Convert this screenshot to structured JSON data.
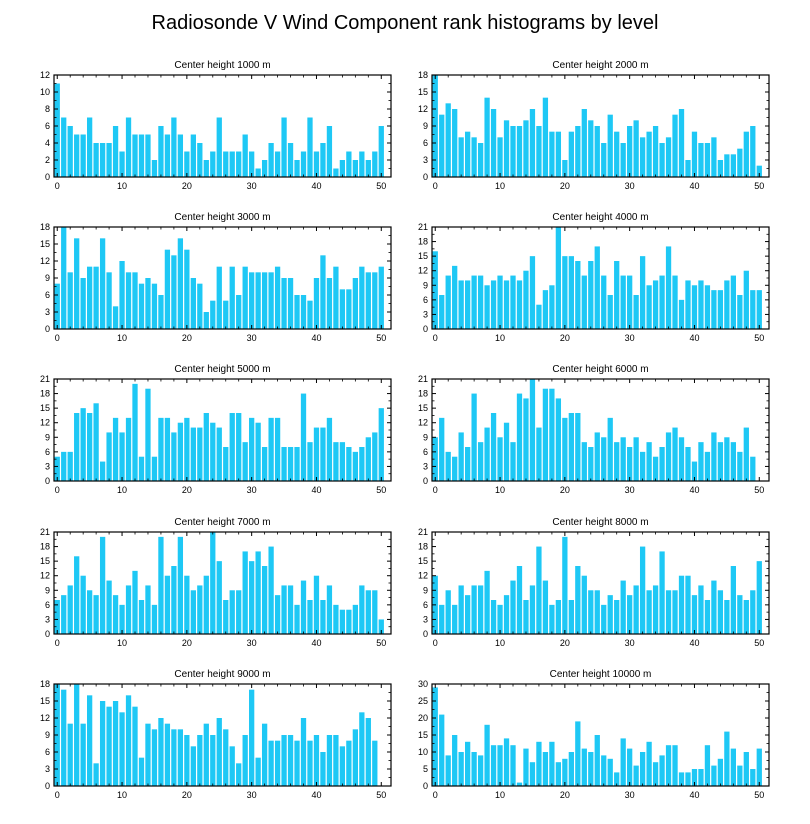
{
  "title": "Radiosonde V Wind Component rank histograms by level",
  "colors": {
    "bar": "#1ec8f5",
    "bar_edge": "#ffffff",
    "axis": "#000000"
  },
  "chart_data": [
    {
      "type": "bar",
      "title": "Center height 1000 m",
      "ylim": [
        0,
        12
      ],
      "yticks": [
        0,
        2,
        4,
        6,
        8,
        10,
        12
      ],
      "xlim": [
        -0.5,
        51.5
      ],
      "xticks": [
        0,
        10,
        20,
        30,
        40,
        50
      ],
      "values": [
        11,
        7,
        6,
        5,
        5,
        7,
        4,
        4,
        4,
        6,
        3,
        7,
        5,
        5,
        5,
        2,
        6,
        5,
        7,
        5,
        3,
        5,
        4,
        2,
        3,
        7,
        3,
        3,
        3,
        5,
        3,
        1,
        2,
        4,
        3,
        7,
        4,
        2,
        3,
        7,
        3,
        4,
        6,
        1,
        2,
        3,
        2,
        3,
        2,
        3,
        6
      ]
    },
    {
      "type": "bar",
      "title": "Center height 2000 m",
      "ylim": [
        0,
        18
      ],
      "yticks": [
        0,
        3,
        6,
        9,
        12,
        15,
        18
      ],
      "xlim": [
        -0.5,
        51.5
      ],
      "xticks": [
        0,
        10,
        20,
        30,
        40,
        50
      ],
      "values": [
        18,
        11,
        13,
        12,
        7,
        8,
        7,
        6,
        14,
        12,
        7,
        10,
        9,
        9,
        10,
        12,
        9,
        14,
        8,
        8,
        3,
        8,
        9,
        12,
        10,
        9,
        6,
        11,
        8,
        6,
        9,
        10,
        7,
        8,
        9,
        6,
        7,
        11,
        12,
        3,
        8,
        6,
        6,
        7,
        3,
        4,
        4,
        5,
        8,
        9,
        2
      ]
    },
    {
      "type": "bar",
      "title": "Center height 3000 m",
      "ylim": [
        0,
        18
      ],
      "yticks": [
        0,
        3,
        6,
        9,
        12,
        15,
        18
      ],
      "xlim": [
        -0.5,
        51.5
      ],
      "xticks": [
        0,
        10,
        20,
        30,
        40,
        50
      ],
      "values": [
        8,
        18,
        10,
        16,
        9,
        11,
        11,
        16,
        10,
        4,
        12,
        10,
        10,
        8,
        9,
        8,
        6,
        14,
        13,
        16,
        14,
        9,
        8,
        3,
        5,
        11,
        5,
        11,
        6,
        11,
        10,
        10,
        10,
        10,
        11,
        9,
        9,
        6,
        6,
        5,
        9,
        13,
        9,
        11,
        7,
        7,
        9,
        11,
        10,
        10,
        11
      ]
    },
    {
      "type": "bar",
      "title": "Center height 4000 m",
      "ylim": [
        0,
        21
      ],
      "yticks": [
        0,
        3,
        6,
        9,
        12,
        15,
        18,
        21
      ],
      "xlim": [
        -0.5,
        51.5
      ],
      "xticks": [
        0,
        10,
        20,
        30,
        40,
        50
      ],
      "values": [
        16,
        7,
        11,
        13,
        10,
        10,
        11,
        11,
        9,
        10,
        11,
        10,
        11,
        10,
        12,
        15,
        5,
        8,
        9,
        21,
        15,
        15,
        14,
        11,
        14,
        17,
        11,
        7,
        14,
        11,
        11,
        7,
        15,
        9,
        10,
        11,
        17,
        11,
        6,
        10,
        9,
        10,
        9,
        8,
        8,
        10,
        11,
        7,
        12,
        8,
        8
      ]
    },
    {
      "type": "bar",
      "title": "Center height 5000 m",
      "ylim": [
        0,
        21
      ],
      "yticks": [
        0,
        3,
        6,
        9,
        12,
        15,
        18,
        21
      ],
      "xlim": [
        -0.5,
        51.5
      ],
      "xticks": [
        0,
        10,
        20,
        30,
        40,
        50
      ],
      "values": [
        5,
        6,
        6,
        14,
        15,
        14,
        16,
        4,
        10,
        13,
        10,
        13,
        20,
        5,
        19,
        5,
        13,
        13,
        10,
        12,
        13,
        11,
        11,
        14,
        12,
        11,
        7,
        14,
        14,
        8,
        13,
        12,
        7,
        13,
        13,
        7,
        7,
        7,
        18,
        8,
        11,
        11,
        13,
        8,
        8,
        7,
        6,
        7,
        9,
        10,
        15
      ]
    },
    {
      "type": "bar",
      "title": "Center height 6000 m",
      "ylim": [
        0,
        21
      ],
      "yticks": [
        0,
        3,
        6,
        9,
        12,
        15,
        18,
        21
      ],
      "xlim": [
        -0.5,
        51.5
      ],
      "xticks": [
        0,
        10,
        20,
        30,
        40,
        50
      ],
      "values": [
        9,
        13,
        6,
        5,
        10,
        7,
        18,
        8,
        11,
        14,
        9,
        12,
        8,
        18,
        17,
        21,
        11,
        19,
        19,
        17,
        13,
        14,
        14,
        8,
        7,
        10,
        9,
        13,
        8,
        9,
        7,
        9,
        6,
        8,
        5,
        7,
        10,
        11,
        9,
        7,
        4,
        8,
        6,
        10,
        8,
        9,
        8,
        6,
        11,
        5
      ]
    },
    {
      "type": "bar",
      "title": "Center height 7000 m",
      "ylim": [
        0,
        21
      ],
      "yticks": [
        0,
        3,
        6,
        9,
        12,
        15,
        18,
        21
      ],
      "xlim": [
        -0.5,
        51.5
      ],
      "xticks": [
        0,
        10,
        20,
        30,
        40,
        50
      ],
      "values": [
        7,
        8,
        10,
        16,
        12,
        9,
        8,
        20,
        11,
        8,
        6,
        10,
        13,
        7,
        10,
        6,
        20,
        12,
        14,
        20,
        12,
        9,
        10,
        12,
        21,
        15,
        7,
        9,
        9,
        17,
        15,
        17,
        14,
        18,
        8,
        10,
        10,
        6,
        11,
        7,
        12,
        7,
        10,
        6,
        5,
        5,
        6,
        10,
        9,
        9,
        3
      ]
    },
    {
      "type": "bar",
      "title": "Center height 8000 m",
      "ylim": [
        0,
        21
      ],
      "yticks": [
        0,
        3,
        6,
        9,
        12,
        15,
        18,
        21
      ],
      "xlim": [
        -0.5,
        51.5
      ],
      "xticks": [
        0,
        10,
        20,
        30,
        40,
        50
      ],
      "values": [
        12,
        6,
        9,
        6,
        10,
        8,
        10,
        10,
        13,
        7,
        6,
        8,
        11,
        14,
        7,
        10,
        18,
        11,
        6,
        7,
        20,
        7,
        14,
        12,
        9,
        9,
        6,
        8,
        7,
        11,
        8,
        10,
        18,
        9,
        10,
        17,
        9,
        9,
        12,
        12,
        8,
        10,
        7,
        11,
        9,
        7,
        14,
        8,
        7,
        9,
        15
      ]
    },
    {
      "type": "bar",
      "title": "Center height 9000 m",
      "ylim": [
        0,
        18
      ],
      "yticks": [
        0,
        3,
        6,
        9,
        12,
        15,
        18
      ],
      "xlim": [
        -0.5,
        51.5
      ],
      "xticks": [
        0,
        10,
        20,
        30,
        40,
        50
      ],
      "values": [
        18,
        17,
        11,
        18,
        11,
        16,
        4,
        15,
        14,
        15,
        13,
        16,
        14,
        5,
        11,
        10,
        12,
        11,
        10,
        10,
        9,
        7,
        9,
        11,
        9,
        12,
        10,
        7,
        4,
        9,
        17,
        5,
        11,
        8,
        8,
        9,
        9,
        8,
        12,
        8,
        9,
        6,
        9,
        9,
        7,
        8,
        10,
        13,
        12,
        8
      ]
    },
    {
      "type": "bar",
      "title": "Center height 10000 m",
      "ylim": [
        0,
        30
      ],
      "yticks": [
        0,
        5,
        10,
        15,
        20,
        25,
        30
      ],
      "xlim": [
        -0.5,
        51.5
      ],
      "xticks": [
        0,
        10,
        20,
        30,
        40,
        50
      ],
      "values": [
        29,
        21,
        9,
        15,
        10,
        13,
        10,
        9,
        18,
        12,
        12,
        14,
        12,
        1,
        11,
        7,
        13,
        10,
        13,
        7,
        8,
        10,
        19,
        11,
        10,
        15,
        9,
        8,
        4,
        14,
        11,
        6,
        10,
        13,
        7,
        9,
        12,
        12,
        4,
        4,
        5,
        5,
        12,
        6,
        8,
        16,
        11,
        6,
        10,
        5,
        11
      ]
    }
  ]
}
